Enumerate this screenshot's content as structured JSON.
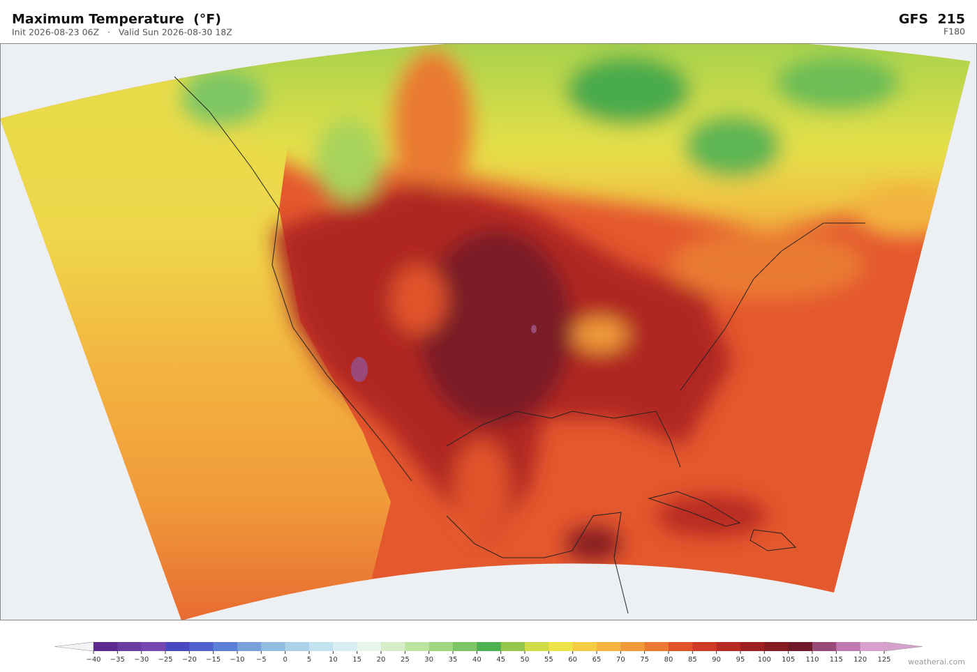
{
  "header": {
    "title": "Maximum Temperature  (°F)",
    "subtitle": "Init 2026-08-23 06Z   ·   Valid Sun 2026-08-30 18Z",
    "model": "GFS  215",
    "forecast_hour": "F180"
  },
  "colorbar": {
    "colors": [
      "#5b2a8c",
      "#6a3ca0",
      "#7448b0",
      "#4a48c0",
      "#4e62cc",
      "#5c80d8",
      "#7aa0dc",
      "#92bde0",
      "#aad2e8",
      "#c2e3ee",
      "#d8eef2",
      "#e6f4ea",
      "#d6ecc6",
      "#bde3a0",
      "#9fd680",
      "#7cc665",
      "#4db152",
      "#94c74a",
      "#cfdc48",
      "#eee44a",
      "#f4cd45",
      "#f3b440",
      "#f09a3a",
      "#ea7a32",
      "#e0522a",
      "#cf3a26",
      "#b82a24",
      "#9e1e22",
      "#861a22",
      "#6e1a28",
      "#9a4a78",
      "#c078b0",
      "#d8a0cc"
    ],
    "under_color": "#f4f4f8",
    "over_color": "#d8a0cc",
    "ticks": [
      {
        "value": -40,
        "label": "−40"
      },
      {
        "value": -35,
        "label": "−35"
      },
      {
        "value": -30,
        "label": "−30"
      },
      {
        "value": -25,
        "label": "−25"
      },
      {
        "value": -20,
        "label": "−20"
      },
      {
        "value": -15,
        "label": "−15"
      },
      {
        "value": -10,
        "label": "−10"
      },
      {
        "value": -5,
        "label": "−5"
      },
      0,
      5,
      10,
      15,
      20,
      25,
      30,
      35,
      40,
      45,
      50,
      55,
      60,
      65,
      70,
      75,
      80,
      85,
      90,
      95,
      100,
      105,
      110,
      115,
      120,
      125
    ]
  },
  "footer": {
    "watermark": "weatherai.com"
  }
}
